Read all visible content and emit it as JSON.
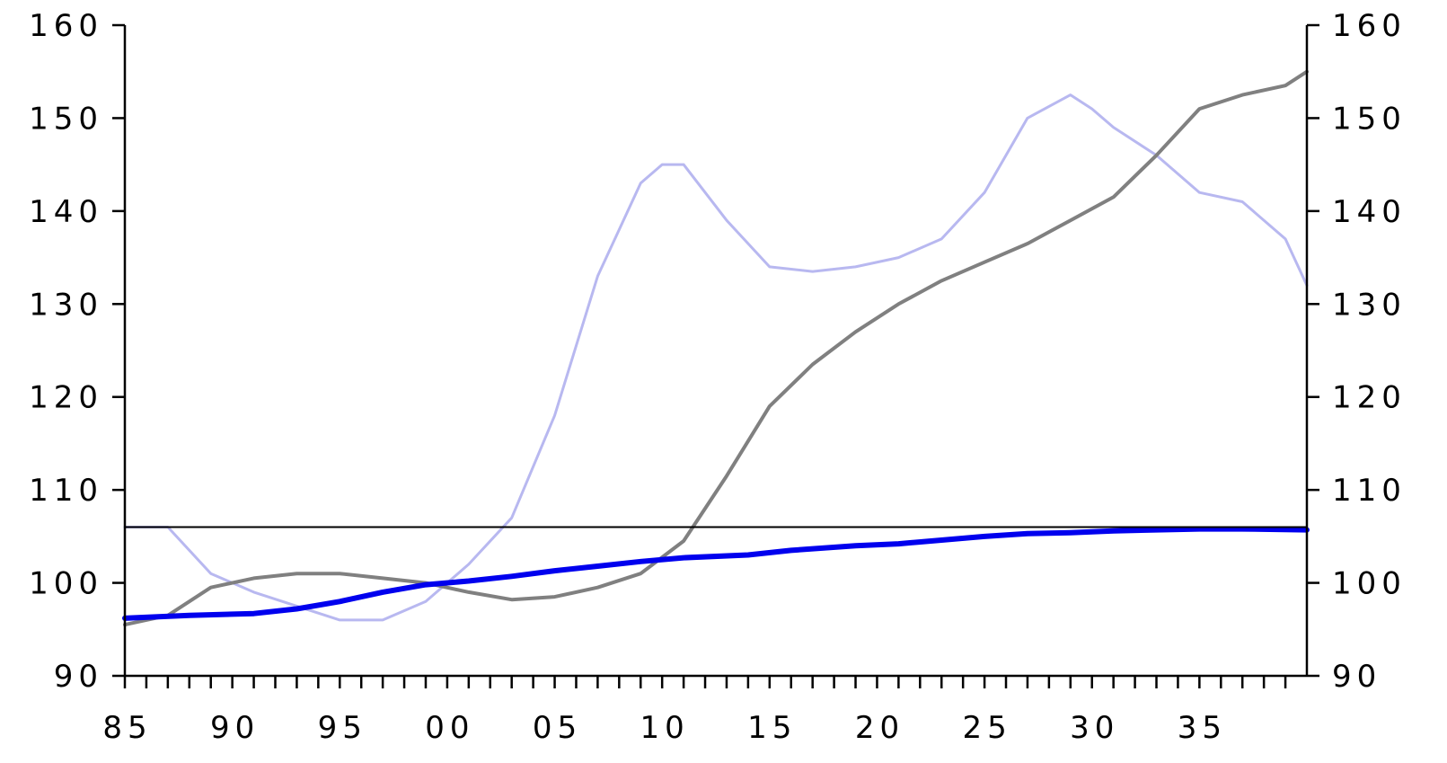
{
  "chart_data": {
    "type": "line",
    "xlim": [
      1985,
      2040
    ],
    "ylim": [
      90,
      160
    ],
    "x_ticks": [
      1985,
      1990,
      1995,
      2000,
      2005,
      2010,
      2015,
      2020,
      2025,
      2030,
      2035
    ],
    "x_tick_labels": [
      "85",
      "90",
      "95",
      "00",
      "05",
      "10",
      "15",
      "20",
      "25",
      "30",
      "35"
    ],
    "y_ticks": [
      90,
      100,
      110,
      120,
      130,
      140,
      150,
      160
    ],
    "y_tick_labels": [
      "90",
      "100",
      "110",
      "120",
      "130",
      "140",
      "150",
      "160"
    ],
    "y2_ticks": [
      90,
      100,
      110,
      120,
      130,
      140,
      150,
      160
    ],
    "y2_tick_labels": [
      "90",
      "100",
      "110",
      "120",
      "130",
      "140",
      "150",
      "160"
    ],
    "grid": false,
    "reference_line": {
      "y": 106,
      "color": "#000000"
    },
    "series": [
      {
        "color": "#b8b8f0",
        "x": [
          1985,
          1987,
          1989,
          1991,
          1993,
          1995,
          1997,
          1999,
          2001,
          2003,
          2005,
          2007,
          2009,
          2010,
          2011,
          2013,
          2015,
          2017,
          2019,
          2021,
          2023,
          2025,
          2027,
          2029,
          2030,
          2031,
          2033,
          2035,
          2037,
          2039,
          2040
        ],
        "y": [
          106,
          106,
          101,
          99,
          97.5,
          96,
          96,
          98,
          102,
          107,
          118,
          133,
          143,
          145,
          145,
          139,
          134,
          133.5,
          134,
          135,
          137,
          142,
          150,
          152.5,
          151,
          149,
          146,
          142,
          141,
          137,
          132
        ]
      },
      {
        "color": "#808080",
        "x": [
          1985,
          1987,
          1989,
          1991,
          1993,
          1995,
          1997,
          1999,
          2001,
          2003,
          2005,
          2007,
          2009,
          2011,
          2013,
          2015,
          2017,
          2019,
          2021,
          2023,
          2025,
          2027,
          2029,
          2031,
          2033,
          2035,
          2037,
          2039,
          2040
        ],
        "y": [
          95.5,
          96.5,
          99.5,
          100.5,
          101,
          101,
          100.5,
          100,
          99,
          98.2,
          98.5,
          99.5,
          101,
          104.5,
          111.5,
          119,
          123.5,
          127,
          130,
          132.5,
          134.5,
          136.5,
          139,
          141.5,
          146,
          151,
          152.5,
          153.5,
          155
        ]
      },
      {
        "color": "#0000ee",
        "x": [
          1985,
          1988,
          1991,
          1993,
          1995,
          1997,
          1999,
          2001,
          2003,
          2005,
          2007,
          2009,
          2011,
          2014,
          2016,
          2019,
          2021,
          2023,
          2025,
          2027,
          2029,
          2031,
          2033,
          2035,
          2037,
          2040
        ],
        "y": [
          96.2,
          96.5,
          96.7,
          97.2,
          98,
          99,
          99.8,
          100.2,
          100.7,
          101.3,
          101.8,
          102.3,
          102.7,
          103,
          103.5,
          104,
          104.2,
          104.6,
          105,
          105.3,
          105.4,
          105.6,
          105.7,
          105.8,
          105.8,
          105.7
        ]
      }
    ]
  }
}
